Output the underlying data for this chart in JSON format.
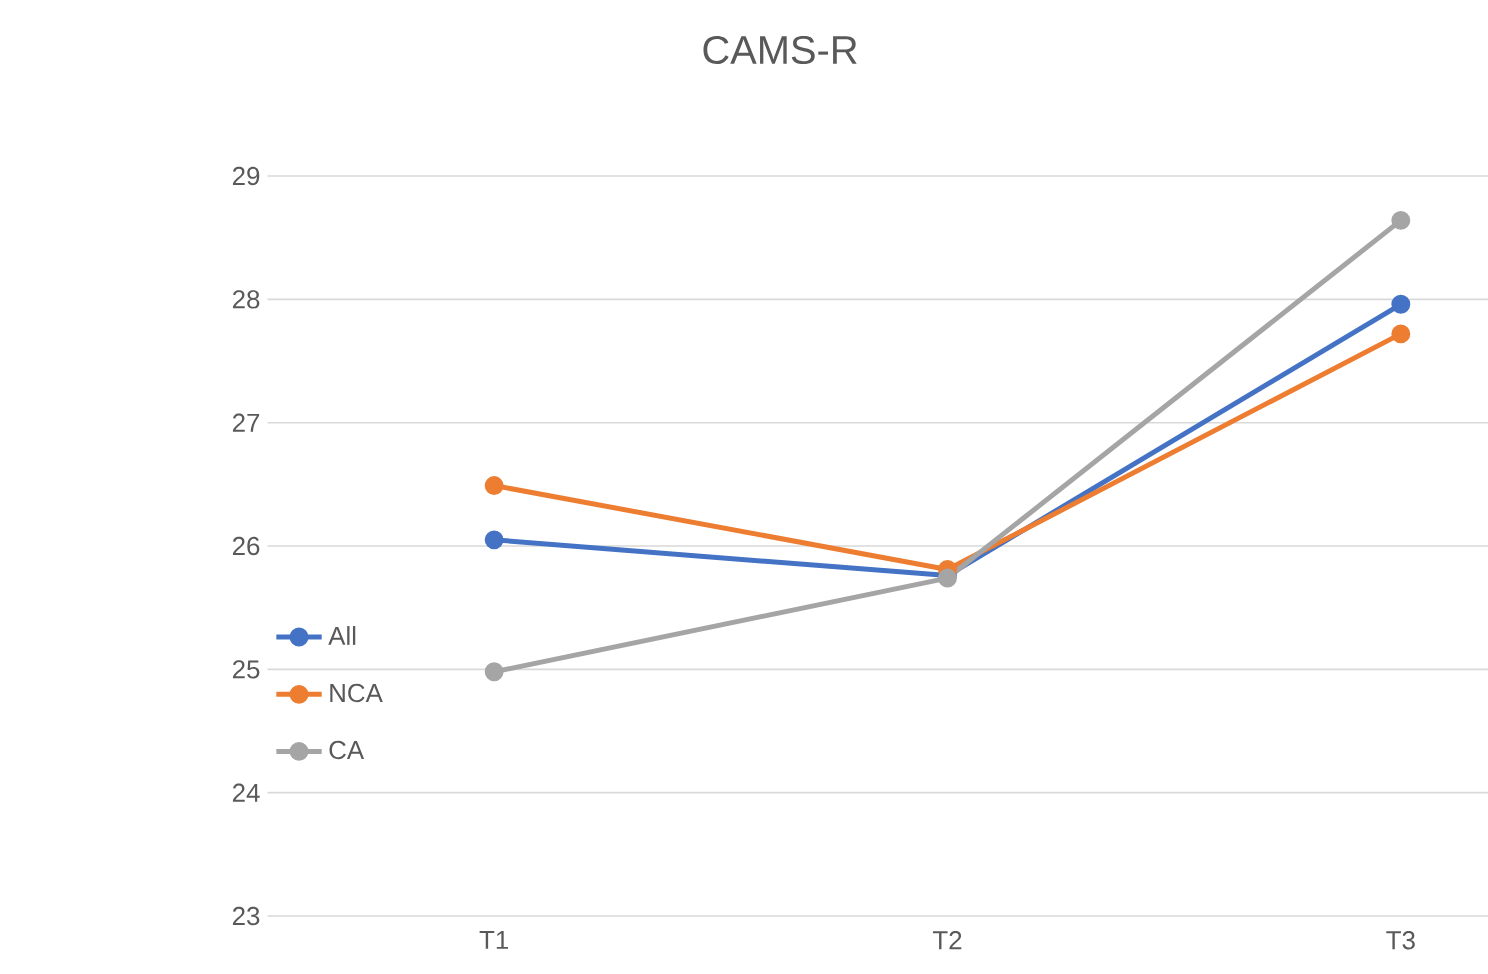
{
  "chart_data": {
    "type": "line",
    "title": "CAMS-R",
    "categories": [
      "T1",
      "T2",
      "T3"
    ],
    "series": [
      {
        "name": "All",
        "color": "#4472c4",
        "values": [
          26.05,
          25.76,
          27.96
        ]
      },
      {
        "name": "NCA",
        "color": "#ed7d31",
        "values": [
          26.49,
          25.81,
          27.72
        ]
      },
      {
        "name": "CA",
        "color": "#a5a5a5",
        "values": [
          24.98,
          25.74,
          28.64
        ]
      }
    ],
    "ylim": [
      23,
      29
    ],
    "yticks": [
      23,
      24,
      25,
      26,
      27,
      28,
      29
    ],
    "grid": "y",
    "legend": "left",
    "marker": "circle",
    "line_style": "solid"
  }
}
